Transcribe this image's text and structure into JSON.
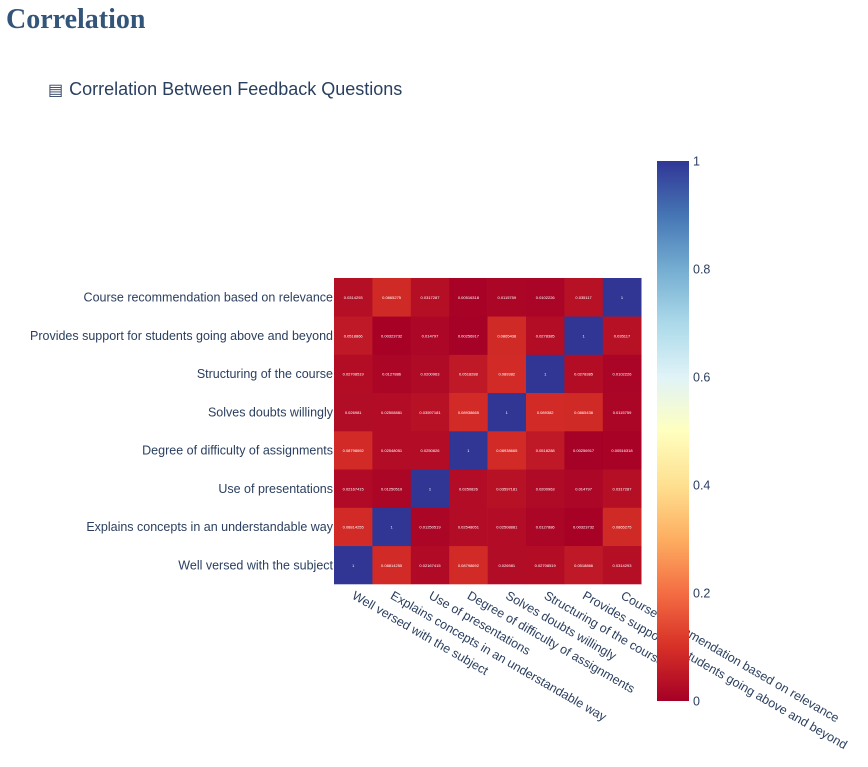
{
  "page": {
    "title": "Correlation",
    "subtitle_icon": "chart-icon",
    "subtitle": "Correlation Between Feedback Questions"
  },
  "chart_data": {
    "type": "heatmap",
    "x_labels": [
      "Well versed with the subject",
      "Explains concepts in an understandable way",
      "Use of presentations",
      "Degree of difficulty of assignments",
      "Solves doubts willingly",
      "Structuring of the course",
      "Provides support for students going above and beyond",
      "Course recommendation based on relevance"
    ],
    "y_labels": [
      "Well versed with the subject",
      "Explains concepts in an understandable way",
      "Use of presentations",
      "Degree of difficulty of assignments",
      "Solves doubts willingly",
      "Structuring of the course",
      "Provides support for students going above and beyond",
      "Course recommendation based on relevance"
    ],
    "values": [
      [
        1,
        0.08814255,
        0.02167415,
        0.08798692,
        0.026981,
        0.02708519,
        0.0518866,
        0.0314293
      ],
      [
        0.08814255,
        1,
        0.01250519,
        0.02548051,
        0.02508881,
        0.0127886,
        0.00323732,
        0.0865275
      ],
      [
        0.02167415,
        0.01250519,
        1,
        0.0250826,
        0.03597181,
        0.0200963,
        0.014797,
        0.0317287
      ],
      [
        0.08798692,
        0.02548051,
        0.0250826,
        1,
        0.08938665,
        0.0518288,
        0.00256917,
        0.00516318
      ],
      [
        0.026981,
        0.02508881,
        0.03597181,
        0.08938665,
        1,
        0.089382,
        0.0865438,
        0.0115759
      ],
      [
        0.02708519,
        0.0127886,
        0.0200963,
        0.0518288,
        0.089382,
        1,
        0.0278385,
        0.0102226
      ],
      [
        0.0518866,
        0.00323732,
        0.014797,
        0.00256917,
        0.0865438,
        0.0278385,
        1,
        0.035117
      ],
      [
        0.0314293,
        0.0865275,
        0.0317287,
        0.00516318,
        0.0115759,
        0.0102226,
        0.035117,
        1
      ]
    ],
    "colorscale": [
      "#a50026",
      "#d73027",
      "#f46d43",
      "#fdae61",
      "#fee090",
      "#ffffbf",
      "#e0f3f8",
      "#abd9e9",
      "#74add1",
      "#4575b4",
      "#313695"
    ],
    "colorbar": {
      "range": [
        0,
        1
      ],
      "tick_labels": [
        "0",
        "0.2",
        "0.4",
        "0.6",
        "0.8",
        "1"
      ],
      "tick_values": [
        0,
        0.2,
        0.4,
        0.6,
        0.8,
        1
      ]
    }
  }
}
